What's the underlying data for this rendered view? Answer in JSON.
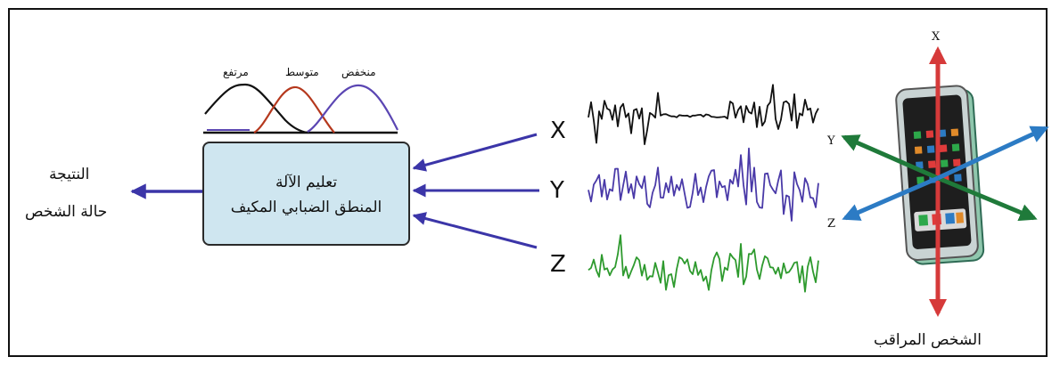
{
  "fuzzy": {
    "labels": {
      "high": "مرتفع",
      "medium": "متوسط",
      "low": "منخفض"
    },
    "colors": {
      "high": "#111111",
      "medium": "#b5381d",
      "low": "#5b46b3"
    }
  },
  "process_box": {
    "line1": "تعليم الآلة",
    "line2": "المنطق الضبابي المكيف",
    "fill": "#cfe6f0"
  },
  "output": {
    "line1": "النتيجة",
    "line2": "حالة الشخص"
  },
  "signals": [
    {
      "axis": "X",
      "color": "#111111"
    },
    {
      "axis": "Y",
      "color": "#4a3aa8"
    },
    {
      "axis": "Z",
      "color": "#2e9a2e"
    }
  ],
  "phone": {
    "axes": {
      "x": "X",
      "y": "Y",
      "z": "Z"
    },
    "caption": "الشخص المراقب",
    "axis_colors": {
      "x": "#d63a3a",
      "y": "#2c7bc4",
      "z": "#1f7a3a"
    }
  },
  "arrow_color": "#3b35a8"
}
